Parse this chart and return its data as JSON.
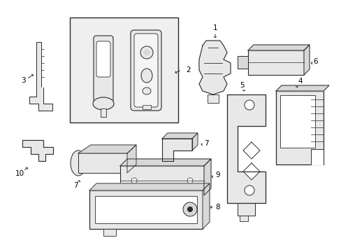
{
  "background_color": "#ffffff",
  "figure_width": 4.89,
  "figure_height": 3.6,
  "dpi": 100,
  "line_color": "#2a2a2a",
  "fill_color": "#e8e8e8",
  "white": "#ffffff",
  "light_gray": "#d8d8d8",
  "annotation_fontsize": 7.5
}
